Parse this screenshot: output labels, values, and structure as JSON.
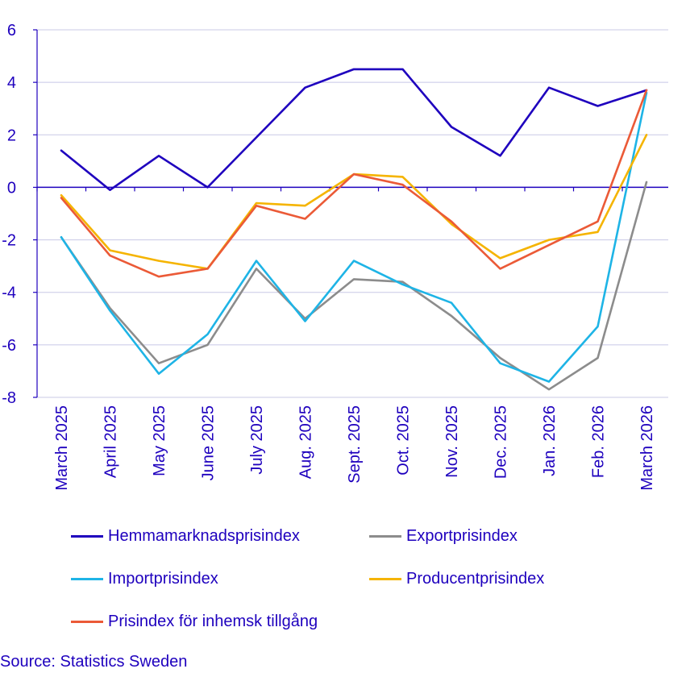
{
  "chart_data": {
    "type": "line",
    "categories": [
      "March 2025",
      "April 2025",
      "May 2025",
      "June 2025",
      "July 2025",
      "Aug. 2025",
      "Sept. 2025",
      "Oct. 2025",
      "Nov. 2025",
      "Dec. 2025",
      "Jan. 2026",
      "Feb. 2026",
      "March 2026"
    ],
    "ylim": [
      -8,
      6
    ],
    "yticks": [
      6,
      4,
      2,
      0,
      -2,
      -4,
      -6,
      -8
    ],
    "ytick_labels": [
      "6",
      "4",
      "2",
      "0",
      "-2",
      "-4",
      "-6",
      "-8"
    ],
    "grid": true,
    "legend_placement": "bottom",
    "series": [
      {
        "name": "Hemmamarknadsprisindex",
        "color": "#1e00be",
        "values": [
          1.4,
          -0.1,
          1.2,
          0.0,
          1.9,
          3.8,
          4.5,
          4.5,
          2.3,
          1.2,
          3.8,
          3.1,
          3.7
        ]
      },
      {
        "name": "Exportprisindex",
        "color": "#8c8c8c",
        "values": [
          -1.9,
          -4.6,
          -6.7,
          -6.0,
          -3.1,
          -5.0,
          -3.5,
          -3.6,
          -4.9,
          -6.5,
          -7.7,
          -6.5,
          0.2
        ]
      },
      {
        "name": "Importprisindex",
        "color": "#1eb4e6",
        "values": [
          -1.9,
          -4.7,
          -7.1,
          -5.6,
          -2.8,
          -5.1,
          -2.8,
          -3.7,
          -4.4,
          -6.7,
          -7.4,
          -5.3,
          3.6
        ]
      },
      {
        "name": "Producentprisindex",
        "color": "#f5b400",
        "values": [
          -0.3,
          -2.4,
          -2.8,
          -3.1,
          -0.6,
          -0.7,
          0.5,
          0.4,
          -1.4,
          -2.7,
          -2.0,
          -1.7,
          2.0
        ]
      },
      {
        "name": "Prisindex för inhemsk tillgång",
        "color": "#eb5a37",
        "values": [
          -0.4,
          -2.6,
          -3.4,
          -3.1,
          -0.7,
          -1.2,
          0.5,
          0.1,
          -1.3,
          -3.1,
          -2.2,
          -1.3,
          3.7
        ]
      }
    ]
  },
  "source": "Source: Statistics Sweden",
  "colors": {
    "text": "#1e00be",
    "axis": "#1e00be",
    "grid": "#c8c8e6"
  }
}
